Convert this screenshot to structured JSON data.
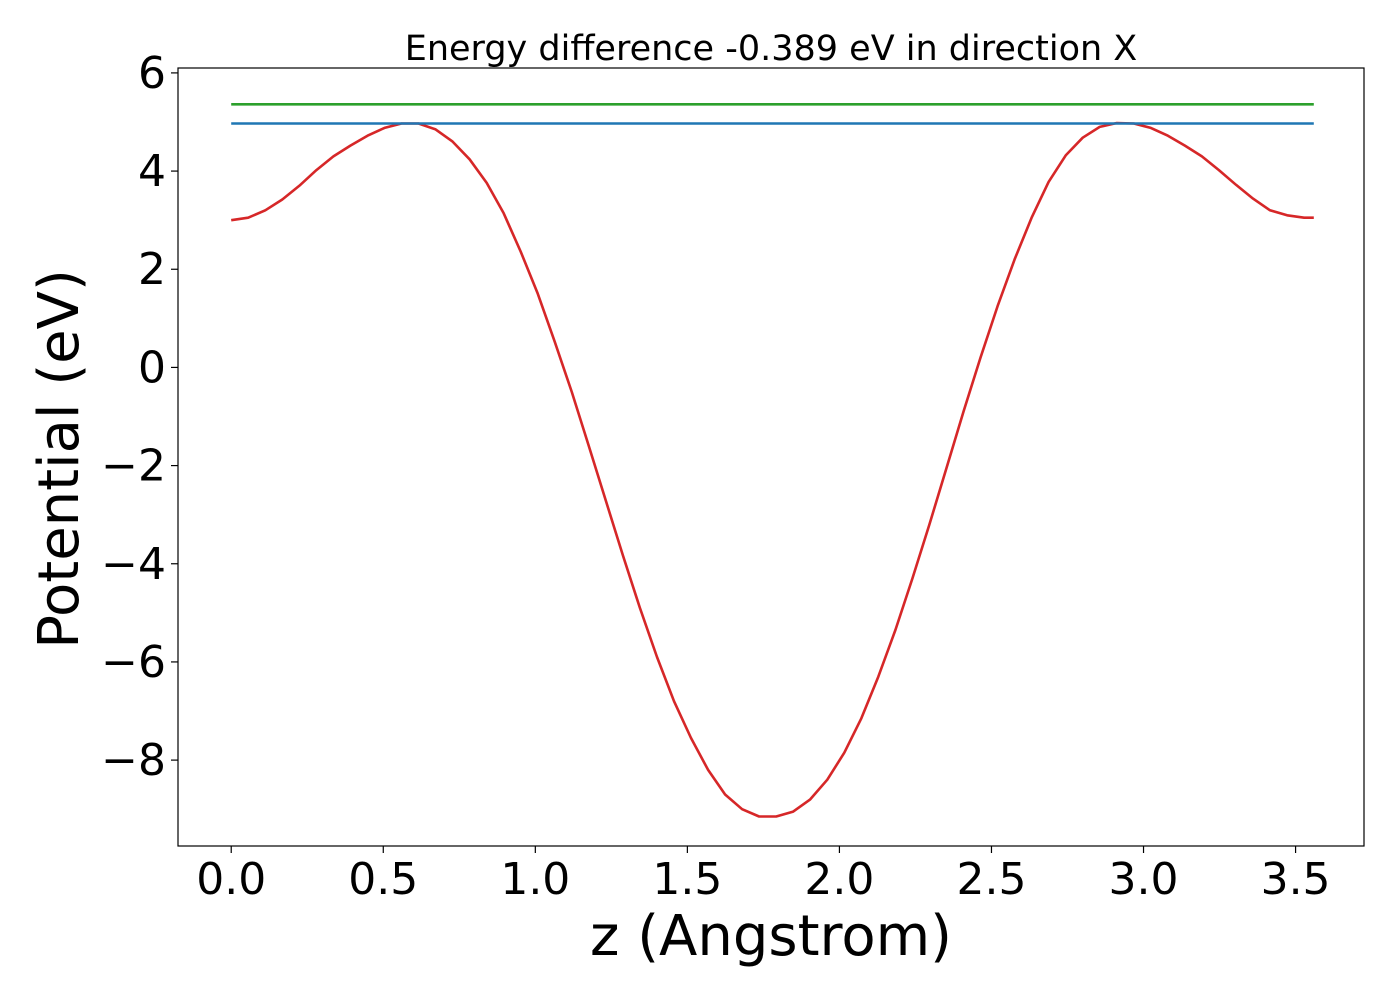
{
  "chart_data": {
    "type": "line",
    "title": "Energy difference -0.389 eV in direction X",
    "xlabel": "z (Angstrom)",
    "ylabel": "Potential (eV)",
    "xlim": [
      -0.175,
      3.725
    ],
    "ylim": [
      -9.75,
      6.1
    ],
    "xticks": [
      0.0,
      0.5,
      1.0,
      1.5,
      2.0,
      2.5,
      3.0,
      3.5
    ],
    "xtick_labels": [
      "0.0",
      "0.5",
      "1.0",
      "1.5",
      "2.0",
      "2.5",
      "3.0",
      "3.5"
    ],
    "yticks": [
      -8,
      -6,
      -4,
      -2,
      0,
      2,
      4,
      6
    ],
    "ytick_labels": [
      "−8",
      "−6",
      "−4",
      "−2",
      "0",
      "2",
      "4",
      "6"
    ],
    "grid": false,
    "series": [
      {
        "color": "#d62728",
        "x": [
          0.0,
          0.056,
          0.112,
          0.168,
          0.224,
          0.28,
          0.336,
          0.392,
          0.448,
          0.504,
          0.56,
          0.616,
          0.672,
          0.728,
          0.784,
          0.84,
          0.896,
          0.952,
          1.008,
          1.064,
          1.12,
          1.176,
          1.232,
          1.288,
          1.344,
          1.4,
          1.456,
          1.512,
          1.568,
          1.624,
          1.68,
          1.736,
          1.792,
          1.848,
          1.904,
          1.96,
          2.016,
          2.072,
          2.128,
          2.184,
          2.24,
          2.296,
          2.352,
          2.408,
          2.464,
          2.52,
          2.576,
          2.632,
          2.688,
          2.744,
          2.8,
          2.856,
          2.912,
          2.968,
          3.024,
          3.08,
          3.136,
          3.192,
          3.248,
          3.304,
          3.36,
          3.416,
          3.472,
          3.528,
          3.56
        ],
        "y": [
          3.0,
          3.05,
          3.2,
          3.42,
          3.7,
          4.02,
          4.3,
          4.52,
          4.72,
          4.88,
          4.97,
          4.97,
          4.85,
          4.6,
          4.24,
          3.76,
          3.14,
          2.36,
          1.5,
          0.52,
          -0.5,
          -1.6,
          -2.72,
          -3.83,
          -4.9,
          -5.9,
          -6.8,
          -7.55,
          -8.2,
          -8.7,
          -9.0,
          -9.15,
          -9.15,
          -9.05,
          -8.8,
          -8.4,
          -7.85,
          -7.15,
          -6.3,
          -5.35,
          -4.3,
          -3.2,
          -2.05,
          -0.9,
          0.2,
          1.25,
          2.2,
          3.05,
          3.78,
          4.32,
          4.68,
          4.9,
          4.98,
          4.97,
          4.88,
          4.72,
          4.52,
          4.3,
          4.02,
          3.72,
          3.44,
          3.2,
          3.1,
          3.05,
          3.05
        ]
      },
      {
        "color": "#1f77b4",
        "x": [
          0.0,
          3.56
        ],
        "y": [
          4.97,
          4.97
        ]
      },
      {
        "color": "#2ca02c",
        "x": [
          0.0,
          3.56
        ],
        "y": [
          5.36,
          5.36
        ]
      }
    ]
  }
}
